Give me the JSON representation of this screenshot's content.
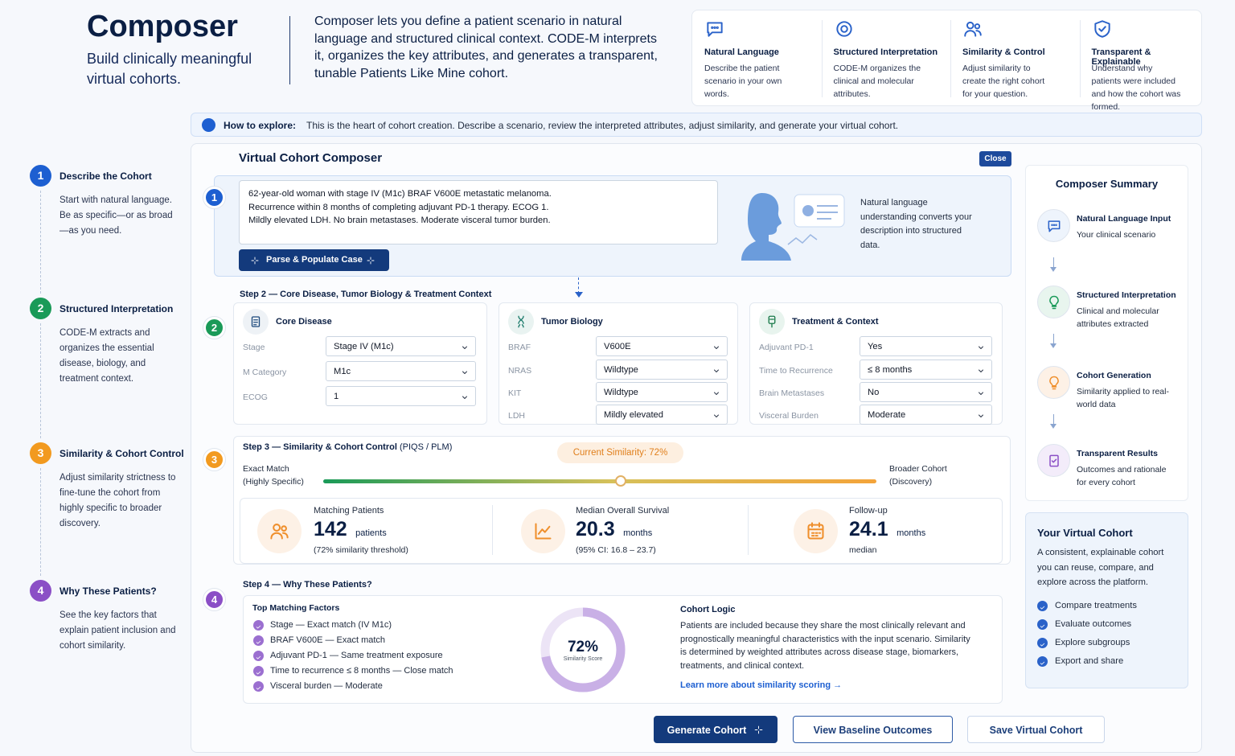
{
  "header": {
    "title": "Composer",
    "subtitle": "Build clinically meaningful virtual cohorts.",
    "description": "Composer lets you define a patient scenario in natural language and structured clinical context. CODE-M interprets it, organizes the key attributes, and generates a transparent, tunable Patients Like Mine cohort."
  },
  "features": [
    {
      "title": "Natural Language",
      "text": "Describe the patient scenario in your own words."
    },
    {
      "title": "Structured Interpretation",
      "text": "CODE-M organizes the clinical and molecular attributes."
    },
    {
      "title": "Similarity & Control",
      "text": "Adjust similarity to create the right cohort for your question."
    },
    {
      "title": "Transparent & Explainable",
      "text": "Understand why patients were included and how the cohort was formed."
    }
  ],
  "explore": {
    "label": "How to explore:",
    "text": "This is the heart of cohort creation. Describe a scenario, review the interpreted attributes, adjust similarity, and generate your virtual cohort."
  },
  "steps": [
    {
      "number": "1",
      "title": "Describe the Cohort",
      "text": "Start with natural language. Be as specific—or as broad—as you need."
    },
    {
      "number": "2",
      "title": "Structured Interpretation",
      "text": "CODE-M extracts and organizes the essential disease, biology, and treatment context."
    },
    {
      "number": "3",
      "title": "Similarity & Cohort Control",
      "text": "Adjust similarity strictness to fine-tune the cohort from highly specific to broader discovery."
    },
    {
      "number": "4",
      "title": "Why These Patients?",
      "text": "See the key factors that explain patient inclusion and cohort similarity."
    }
  ],
  "composer": {
    "title": "Virtual Cohort Composer",
    "close": "Close",
    "scenario": "62-year-old woman with stage IV (M1c) BRAF V600E metastatic melanoma.\nRecurrence within 8 months of completing adjuvant PD-1 therapy. ECOG 1.\nMildly elevated LDH. No brain metastases. Moderate visceral tumor burden.",
    "parse_button": "Parse & Populate Case",
    "nlu_text": "Natural language understanding converts your description into structured data."
  },
  "step2": {
    "title": "Step 2 — Core Disease, Tumor Biology & Treatment Context",
    "groups": [
      {
        "title": "Core Disease",
        "fields": [
          {
            "label": "Stage",
            "value": "Stage IV (M1c)"
          },
          {
            "label": "M Category",
            "value": "M1c"
          },
          {
            "label": "ECOG",
            "value": "1"
          }
        ]
      },
      {
        "title": "Tumor Biology",
        "fields": [
          {
            "label": "BRAF",
            "value": "V600E"
          },
          {
            "label": "NRAS",
            "value": "Wildtype"
          },
          {
            "label": "KIT",
            "value": "Wildtype"
          },
          {
            "label": "LDH",
            "value": "Mildly elevated"
          }
        ]
      },
      {
        "title": "Treatment & Context",
        "fields": [
          {
            "label": "Adjuvant PD-1",
            "value": "Yes"
          },
          {
            "label": "Time to Recurrence",
            "value": "≤ 8 months"
          },
          {
            "label": "Brain Metastases",
            "value": "No"
          },
          {
            "label": "Visceral Burden",
            "value": "Moderate"
          }
        ]
      }
    ]
  },
  "step3": {
    "title": "Step 3 — Similarity & Cohort Control",
    "title_note": "(PIQS / PLM)",
    "current": "Current Similarity: 72%",
    "left_label": [
      "Exact Match",
      "(Highly Specific)"
    ],
    "right_label": [
      "Broader Cohort",
      "(Discovery)"
    ],
    "stats": [
      {
        "label": "Matching Patients",
        "value": "142",
        "unit": "patients",
        "note": "(72% similarity threshold)"
      },
      {
        "label": "Median Overall Survival",
        "value": "20.3",
        "unit": "months",
        "note": "(95% CI: 16.8 – 23.7)"
      },
      {
        "label": "Follow-up",
        "value": "24.1",
        "unit": "months",
        "note": "median"
      }
    ]
  },
  "step4": {
    "title": "Step 4 — Why These Patients?",
    "factors_title": "Top Matching Factors",
    "factors": [
      "Stage — Exact match (IV M1c)",
      "BRAF V600E — Exact match",
      "Adjuvant PD-1 — Same treatment exposure",
      "Time to recurrence ≤ 8 months — Close match",
      "Visceral burden — Moderate"
    ],
    "score": "72%",
    "score_label": "Similarity Score",
    "logic_title": "Cohort Logic",
    "logic_text": "Patients are included because they share the most clinically relevant and prognostically meaningful characteristics with the input scenario. Similarity is determined by weighted attributes across disease stage, biomarkers, treatments, and clinical context.",
    "learn_more": "Learn more about similarity scoring →"
  },
  "actions": [
    "Generate Cohort",
    "View Baseline Outcomes",
    "Save Virtual Cohort"
  ],
  "summary": {
    "title": "Composer Summary",
    "items": [
      {
        "title": "Natural Language Input",
        "text": "Your clinical scenario"
      },
      {
        "title": "Structured Interpretation",
        "text": "Clinical and molecular attributes extracted"
      },
      {
        "title": "Cohort Generation",
        "text": "Similarity applied to real-world data"
      },
      {
        "title": "Transparent Results",
        "text": "Outcomes and rationale for every cohort"
      }
    ]
  },
  "cohort": {
    "title": "Your Virtual Cohort",
    "text": "A consistent, explainable cohort you can reuse, compare, and explore across the platform.",
    "benefits": [
      "Compare treatments",
      "Evaluate outcomes",
      "Explore subgroups",
      "Export and share"
    ]
  }
}
